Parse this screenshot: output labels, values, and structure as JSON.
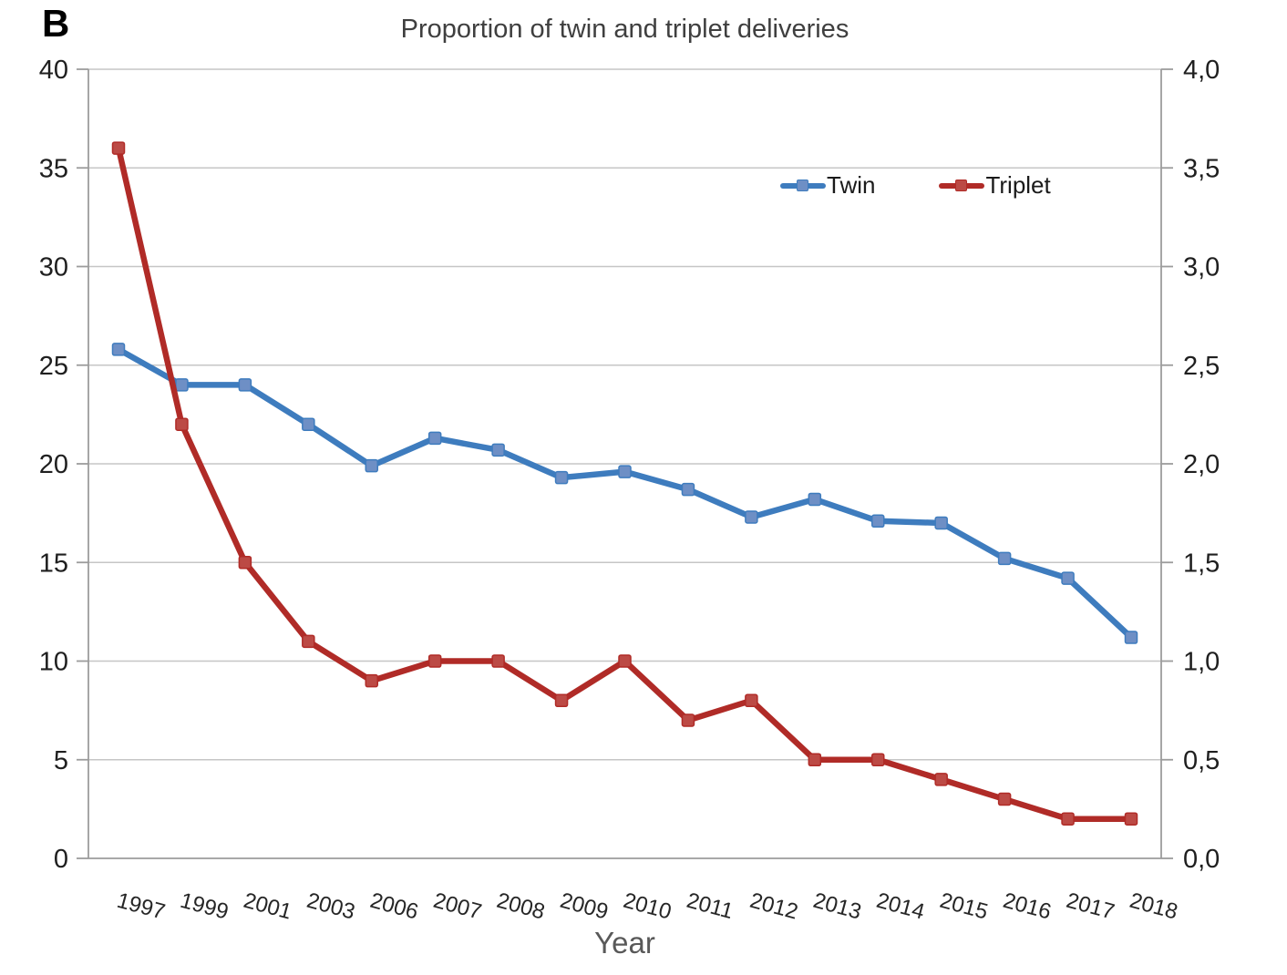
{
  "panel_label": "B",
  "chart_data": {
    "type": "line",
    "title": "Proportion of twin and triplet deliveries",
    "xlabel": "Year",
    "categories": [
      "1997",
      "1999",
      "2001",
      "2003",
      "2006",
      "2007",
      "2008",
      "2009",
      "2010",
      "2011",
      "2012",
      "2013",
      "2014",
      "2015",
      "2016",
      "2017",
      "2018"
    ],
    "series": [
      {
        "name": "Twin",
        "axis": "left",
        "color": "#3E7CBE",
        "marker_color": "#6E8FC5",
        "values": [
          25.8,
          24.0,
          24.0,
          22.0,
          19.9,
          21.3,
          20.7,
          19.3,
          19.6,
          18.7,
          17.3,
          18.2,
          17.1,
          17.0,
          15.2,
          14.2,
          11.2
        ]
      },
      {
        "name": "Triplet",
        "axis": "right",
        "color": "#B02B27",
        "marker_color": "#BC4A45",
        "values": [
          3.6,
          2.2,
          1.5,
          1.1,
          0.9,
          1.0,
          1.0,
          0.8,
          1.0,
          0.7,
          0.8,
          0.5,
          0.5,
          0.4,
          0.3,
          0.2,
          0.2
        ]
      }
    ],
    "left_axis": {
      "min": 0,
      "max": 40,
      "step": 5,
      "tick_labels": [
        "0",
        "5",
        "10",
        "15",
        "20",
        "25",
        "30",
        "35",
        "40"
      ]
    },
    "right_axis": {
      "min": 0,
      "max": 4,
      "step": 0.5,
      "tick_labels": [
        "0,0",
        "0,5",
        "1,0",
        "1,5",
        "2,0",
        "2,5",
        "3,0",
        "3,5",
        "4,0"
      ]
    },
    "legend": {
      "position": "top-right-inside",
      "entries": [
        "Twin",
        "Triplet"
      ]
    },
    "grid": true
  },
  "colors": {
    "gridline": "#C6C6C6",
    "axis_line": "#9C9C9C",
    "tick": "#9C9C9C",
    "title_text": "#3F3F3F",
    "axis_text": "#1F1F1F",
    "x_tick_text": "#262626",
    "xlabel_text": "#595959"
  }
}
